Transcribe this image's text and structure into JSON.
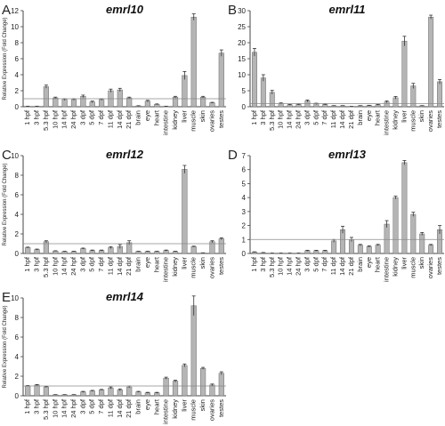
{
  "style": {
    "bar_fill": "#b5b5b5",
    "bar_stroke": "#6b6b6b",
    "axis_color": "#444444",
    "ref_line_color": "#8a8a8a"
  },
  "chart_data": [
    {
      "type": "bar",
      "panel": "A",
      "title": "emrl10",
      "ylabel": "Relative Expression (Fold Change)",
      "yticks": [
        0,
        2,
        4,
        6,
        8,
        10,
        12
      ],
      "ylim": [
        0,
        12
      ],
      "reference_line": 1,
      "categories": [
        "1 hpf",
        "3 hpf",
        "5.3 hpf",
        "10 hpf",
        "14 hpf",
        "24 hpf",
        "3 dpf",
        "5 dpf",
        "7 dpf",
        "11 dpf",
        "14 dpf",
        "21 dpf",
        "brain",
        "eye",
        "heart",
        "intestine",
        "kidney",
        "liver",
        "muscle",
        "skin",
        "ovaries",
        "testes"
      ],
      "values": [
        0.05,
        0.05,
        2.5,
        1.1,
        0.9,
        0.9,
        1.3,
        0.6,
        0.9,
        2.0,
        2.1,
        1.1,
        0.1,
        0.7,
        0.3,
        0.05,
        1.2,
        3.9,
        11.2,
        1.2,
        0.5,
        6.7
      ],
      "errors": [
        0.02,
        0.02,
        0.2,
        0.1,
        0.1,
        0.1,
        0.15,
        0.1,
        0.1,
        0.2,
        0.2,
        0.1,
        0.03,
        0.1,
        0.05,
        0.02,
        0.1,
        0.5,
        0.4,
        0.1,
        0.05,
        0.4
      ]
    },
    {
      "type": "bar",
      "panel": "B",
      "title": "emrl11",
      "ylabel": "",
      "yticks": [
        0,
        5,
        10,
        15,
        20,
        25,
        30
      ],
      "ylim": [
        0,
        30
      ],
      "reference_line": 1,
      "categories": [
        "1 hpf",
        "3 hpf",
        "5.3 hpf",
        "10 hpf",
        "14 hpf",
        "24 hpf",
        "3 dpf",
        "5 dpf",
        "7 dpf",
        "11 dpf",
        "14 dpf",
        "21 dpf",
        "brain",
        "eye",
        "heart",
        "intestine",
        "kidney",
        "liver",
        "muscle",
        "skin",
        "ovaries",
        "testes"
      ],
      "values": [
        17,
        9,
        4.5,
        1.0,
        0.6,
        0.7,
        1.8,
        0.9,
        0.7,
        0.3,
        0.3,
        0.1,
        0.3,
        0.4,
        0.6,
        1.5,
        2.8,
        20.5,
        6.5,
        0.3,
        28,
        7.8
      ],
      "errors": [
        1.2,
        1.0,
        0.6,
        0.2,
        0.1,
        0.1,
        0.3,
        0.2,
        0.1,
        0.05,
        0.05,
        0.03,
        0.05,
        0.05,
        0.1,
        0.3,
        0.4,
        1.5,
        0.8,
        0.05,
        0.6,
        0.7
      ]
    },
    {
      "type": "bar",
      "panel": "C",
      "title": "emrl12",
      "ylabel": "Relative Expression (Fold Change)",
      "yticks": [
        0,
        2,
        4,
        6,
        8,
        10
      ],
      "ylim": [
        0,
        10
      ],
      "reference_line": 1,
      "categories": [
        "1 hpf",
        "3 hpf",
        "5.3 hpf",
        "10 hpf",
        "14 hpf",
        "24 hpf",
        "3 dpf",
        "5 dpf",
        "7 dpf",
        "11 dpf",
        "14 dpf",
        "21 dpf",
        "brain",
        "eye",
        "heart",
        "intestine",
        "kidney",
        "liver",
        "muscle",
        "skin",
        "ovaries",
        "testes"
      ],
      "values": [
        0.6,
        0.4,
        1.2,
        0.25,
        0.2,
        0.2,
        0.5,
        0.3,
        0.3,
        0.6,
        0.7,
        1.1,
        0.2,
        0.2,
        0.2,
        0.3,
        0.2,
        8.6,
        0.7,
        0.05,
        1.2,
        1.5
      ],
      "errors": [
        0.05,
        0.05,
        0.1,
        0.03,
        0.03,
        0.03,
        0.05,
        0.05,
        0.05,
        0.1,
        0.2,
        0.2,
        0.03,
        0.03,
        0.03,
        0.05,
        0.03,
        0.4,
        0.05,
        0.02,
        0.1,
        0.1
      ]
    },
    {
      "type": "bar",
      "panel": "D",
      "title": "emrl13",
      "ylabel": "",
      "yticks": [
        0,
        1,
        2,
        3,
        4,
        5,
        6,
        7
      ],
      "ylim": [
        0,
        7
      ],
      "reference_line": 1,
      "categories": [
        "1 hpf",
        "3 hpf",
        "5.3 hpf",
        "10 hpf",
        "14 hpf",
        "24 hpf",
        "3 dpf",
        "5 dpf",
        "7 dpf",
        "11 dpf",
        "14 dpf",
        "21 dpf",
        "brain",
        "eye",
        "heart",
        "intestine",
        "kidney",
        "liver",
        "muscle",
        "skin",
        "ovaries",
        "testes"
      ],
      "values": [
        0.1,
        0.05,
        0.02,
        0.02,
        0.02,
        0.02,
        0.2,
        0.2,
        0.2,
        0.9,
        1.7,
        1.0,
        0.6,
        0.5,
        0.6,
        2.1,
        4.0,
        6.5,
        2.8,
        1.4,
        0.6,
        1.7
      ],
      "errors": [
        0.02,
        0.02,
        0.01,
        0.01,
        0.01,
        0.01,
        0.03,
        0.03,
        0.03,
        0.1,
        0.25,
        0.15,
        0.05,
        0.05,
        0.05,
        0.25,
        0.1,
        0.15,
        0.15,
        0.1,
        0.05,
        0.3
      ]
    },
    {
      "type": "bar",
      "panel": "E",
      "title": "emrl14",
      "ylabel": "Relative Expression (Fold Change)",
      "yticks": [
        0,
        2,
        4,
        6,
        8,
        10
      ],
      "ylim": [
        0,
        10
      ],
      "reference_line": 1,
      "categories": [
        "1 hpf",
        "3 hpf",
        "5.3 hpf",
        "10 hpf",
        "14 hpf",
        "24 hpf",
        "3 dpf",
        "5 dpf",
        "7 dpf",
        "11 dpf",
        "14 dpf",
        "21 dpf",
        "brain",
        "eye",
        "heart",
        "intestine",
        "kidney",
        "liver",
        "muscle",
        "skin",
        "ovaries",
        "testes"
      ],
      "values": [
        1.0,
        1.1,
        0.9,
        0.1,
        0.1,
        0.1,
        0.4,
        0.5,
        0.6,
        0.8,
        0.6,
        0.9,
        0.4,
        0.3,
        0.3,
        1.8,
        1.5,
        3.1,
        9.2,
        2.8,
        1.1,
        2.3
      ],
      "errors": [
        0.05,
        0.05,
        0.05,
        0.02,
        0.02,
        0.02,
        0.05,
        0.05,
        0.05,
        0.1,
        0.1,
        0.1,
        0.05,
        0.05,
        0.05,
        0.1,
        0.1,
        0.15,
        1.0,
        0.1,
        0.1,
        0.15
      ]
    }
  ]
}
